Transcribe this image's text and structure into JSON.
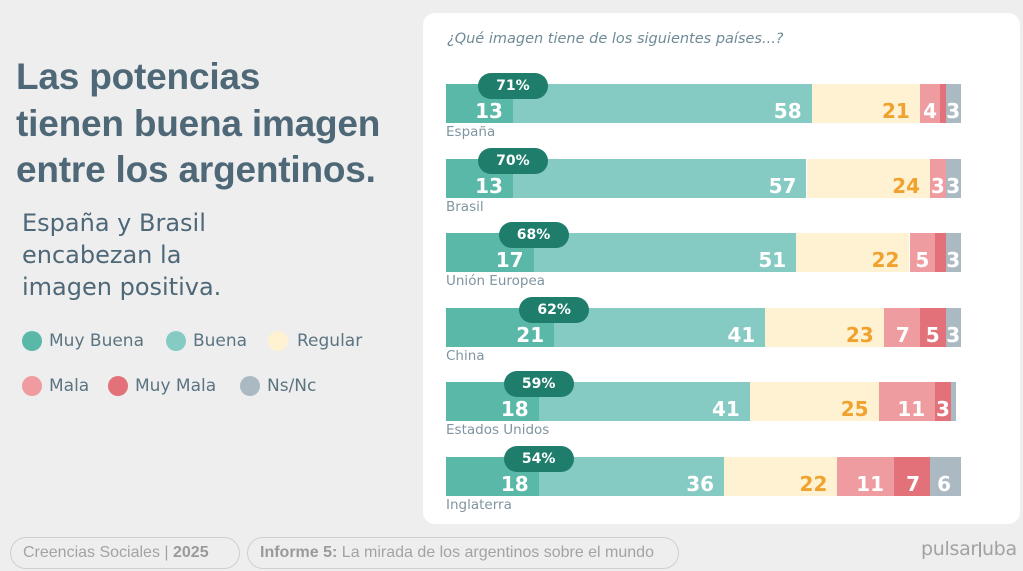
{
  "headline": {
    "lines": [
      "Las potencias",
      "tienen buena imagen",
      "entre los argentinos."
    ]
  },
  "subheadline": {
    "lines": [
      "España y Brasil",
      "encabezan la",
      "imagen positiva."
    ]
  },
  "legend": [
    {
      "label": "Muy Buena",
      "color": "#5ab8a8"
    },
    {
      "label": "Buena",
      "color": "#85cbc3"
    },
    {
      "label": "Regular",
      "color": "#fff2d2"
    },
    {
      "label": "Mala",
      "color": "#ef9ca0"
    },
    {
      "label": "Muy Mala",
      "color": "#e2717a"
    },
    {
      "label": "Ns/Nc",
      "color": "#aab9c2"
    }
  ],
  "chart_data": {
    "type": "bar",
    "orientation": "horizontal",
    "stacked": true,
    "title": "¿Qué imagen tiene de los siguientes países...?",
    "xlabel": "",
    "ylabel": "",
    "unit": "%",
    "xlim": [
      0,
      100
    ],
    "grid": false,
    "legend_position": "left",
    "categories": [
      "España",
      "Brasil",
      "Unión Europea",
      "China",
      "Estados Unidos",
      "Inglaterra"
    ],
    "series": [
      {
        "name": "Muy Buena",
        "color": "#5ab8a8",
        "label_color": "#ffffff",
        "values": [
          13,
          13,
          17,
          21,
          18,
          18
        ],
        "labeled": [
          true,
          true,
          true,
          true,
          true,
          true
        ]
      },
      {
        "name": "Buena",
        "color": "#85cbc3",
        "label_color": "#ffffff",
        "values": [
          58,
          57,
          51,
          41,
          41,
          36
        ],
        "labeled": [
          true,
          true,
          true,
          true,
          true,
          true
        ]
      },
      {
        "name": "Regular",
        "color": "#fff2d2",
        "label_color": "#f0a22e",
        "values": [
          21,
          24,
          22,
          23,
          25,
          22
        ],
        "labeled": [
          true,
          true,
          true,
          true,
          true,
          true
        ]
      },
      {
        "name": "Mala",
        "color": "#ef9ca0",
        "label_color": "#ffffff",
        "values": [
          4,
          3,
          5,
          7,
          11,
          11
        ],
        "labeled": [
          true,
          true,
          true,
          true,
          true,
          true
        ]
      },
      {
        "name": "Muy Mala",
        "color": "#e2717a",
        "label_color": "#ffffff",
        "values": [
          1,
          0,
          2,
          5,
          3,
          7
        ],
        "labeled": [
          false,
          false,
          false,
          true,
          true,
          true
        ]
      },
      {
        "name": "Ns/Nc",
        "color": "#aab9c2",
        "label_color": "#ffffff",
        "values": [
          3,
          3,
          3,
          3,
          1,
          6
        ],
        "labeled": [
          true,
          true,
          true,
          true,
          false,
          true
        ]
      }
    ],
    "positive_totals": {
      "description": "Muy Buena + Buena",
      "values": [
        71,
        70,
        68,
        62,
        59,
        54
      ],
      "labels": [
        "71%",
        "70%",
        "68%",
        "62%",
        "59%",
        "54%"
      ],
      "badge_color": "#1f7d6c"
    }
  },
  "footer": {
    "series_label": "Creencias Sociales | ",
    "series_year": "2025",
    "report_label": "Informe 5:",
    "report_title": " La mirada de los argentinos sobre el mundo",
    "logo_left": "pulsar",
    "logo_right": "uba"
  }
}
